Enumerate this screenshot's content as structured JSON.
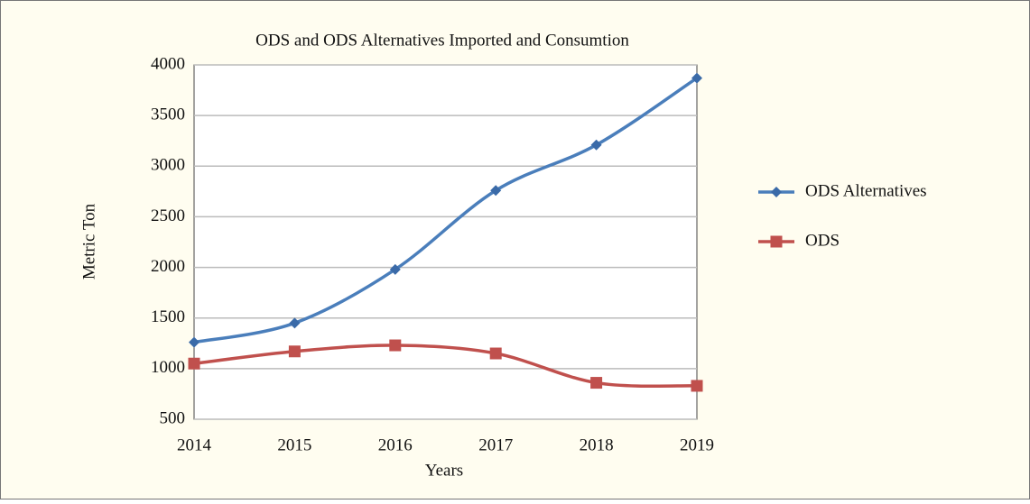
{
  "chart_data": {
    "type": "line",
    "title": "ODS and ODS Alternatives Imported and Consumtion",
    "x_label": "Years",
    "y_label": "Metric Ton",
    "categories": [
      "2014",
      "2015",
      "2016",
      "2017",
      "2018",
      "2019"
    ],
    "series": [
      {
        "name": "ODS Alternatives",
        "color": "#4a7ebb",
        "marker_color": "#3a6aa8",
        "marker": "diamond",
        "values": [
          1260,
          1450,
          1980,
          2760,
          3210,
          3870
        ]
      },
      {
        "name": "ODS",
        "color": "#c0504d",
        "marker_color": "#c0504d",
        "marker": "square",
        "values": [
          1050,
          1170,
          1230,
          1150,
          860,
          830
        ]
      }
    ],
    "ylim": [
      500,
      4000
    ],
    "yticks": [
      500,
      1000,
      1500,
      2000,
      2500,
      3000,
      3500,
      4000
    ],
    "grid": true,
    "legend": "right",
    "smooth": true
  }
}
